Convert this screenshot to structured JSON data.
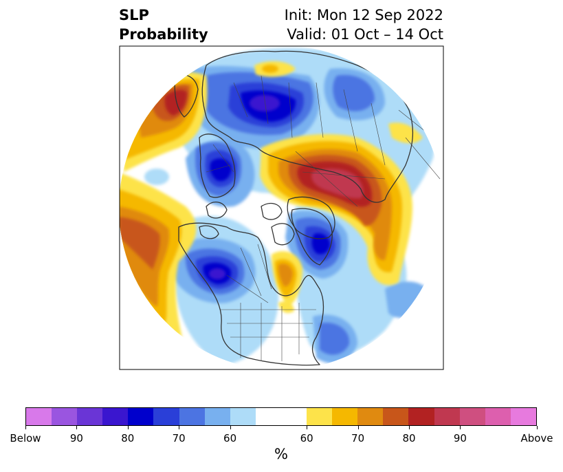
{
  "title": {
    "left_line1": "SLP",
    "left_line2": "Probability",
    "right_line1": "Init: Mon 12 Sep 2022",
    "right_line2": "Valid: 01 Oct – 14 Oct"
  },
  "colorbar": {
    "unit": "%",
    "ticks": [
      "Below",
      "90",
      "80",
      "70",
      "60",
      "60",
      "70",
      "80",
      "90",
      "Above"
    ],
    "below_colors": [
      "#d879ea",
      "#9a55e0",
      "#6a35d6",
      "#3a16cf",
      "#0000cc",
      "#2a3fd8",
      "#4c74e2",
      "#78b0ef",
      "#aedcf8"
    ],
    "neutral_color": "#ffffff",
    "above_colors": [
      "#fde34a",
      "#f5b800",
      "#e08a10",
      "#c8561a",
      "#b22222",
      "#c03850",
      "#cf4f80",
      "#dd5fae",
      "#e77ade"
    ]
  },
  "map": {
    "projection": "north-polar-stereographic",
    "colors": {
      "light_blue": "#aedcf8",
      "mid_blue": "#78b0ef",
      "blue": "#4c74e2",
      "dark_blue": "#0000cc",
      "deep_blue": "#3a16cf",
      "yellow": "#fde34a",
      "gold": "#f5b800",
      "orange": "#e08a10",
      "rust": "#c8561a",
      "red": "#b22222",
      "crimson": "#c03850",
      "coast": "#333333"
    }
  }
}
